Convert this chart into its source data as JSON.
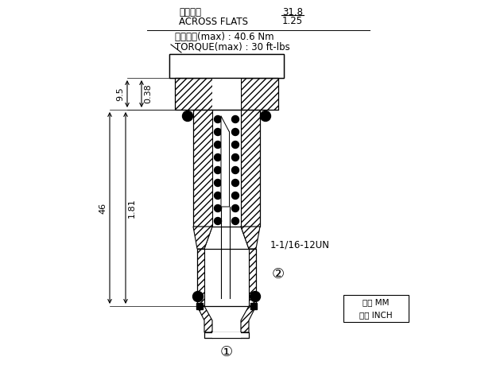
{
  "bg_color": "#ffffff",
  "line_color": "#000000",
  "text_top1_chinese": "對邊寬度",
  "text_top1_english": "ACROSS FLATS",
  "text_top1_val_mm": "31.8",
  "text_top1_val_inch": "1.25",
  "text_top2_chinese": "安裝扭矩(max) : 40.6 Nm",
  "text_top2_english": "TORQUE(max) : 30 ft-lbs",
  "dim_label_9_5": "9.5",
  "dim_label_0_38": "0.38",
  "dim_label_46": "46",
  "dim_label_1_81": "1.81",
  "label_thread": "1-1/16-12UN",
  "label_circle2": "②",
  "label_circle1": "①",
  "font_size_main": 8.5,
  "font_size_dim": 8,
  "font_size_small": 7.5
}
